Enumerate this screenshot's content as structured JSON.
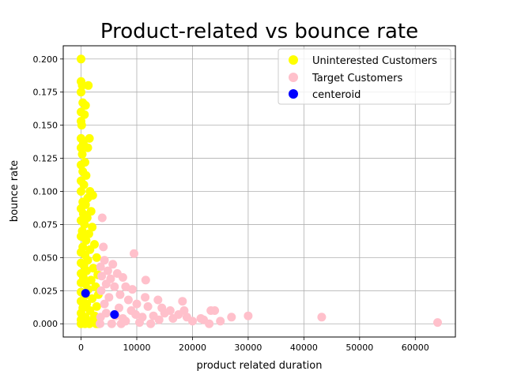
{
  "chart_data": {
    "type": "scatter",
    "title": "Product-related vs bounce rate",
    "xlabel": "product related duration",
    "ylabel": "bounce rate",
    "xlim": [
      -3200,
      67200
    ],
    "ylim": [
      -0.01,
      0.21
    ],
    "xticks": [
      0,
      10000,
      20000,
      30000,
      40000,
      50000,
      60000
    ],
    "xtick_labels": [
      "0",
      "10000",
      "20000",
      "30000",
      "40000",
      "50000",
      "60000"
    ],
    "yticks": [
      0.0,
      0.025,
      0.05,
      0.075,
      0.1,
      0.125,
      0.15,
      0.175,
      0.2
    ],
    "ytick_labels": [
      "0.000",
      "0.025",
      "0.050",
      "0.075",
      "0.100",
      "0.125",
      "0.150",
      "0.175",
      "0.200"
    ],
    "grid": true,
    "legend_position": "top-right",
    "series": [
      {
        "name": "Uninterested Customers",
        "color": "#ffff00",
        "points": [
          [
            0,
            0.2
          ],
          [
            0,
            0.183
          ],
          [
            200,
            0.18
          ],
          [
            1300,
            0.18
          ],
          [
            0,
            0.175
          ],
          [
            300,
            0.167
          ],
          [
            800,
            0.165
          ],
          [
            0,
            0.16
          ],
          [
            600,
            0.158
          ],
          [
            0,
            0.153
          ],
          [
            100,
            0.15
          ],
          [
            1500,
            0.14
          ],
          [
            0,
            0.14
          ],
          [
            400,
            0.136
          ],
          [
            1200,
            0.133
          ],
          [
            0,
            0.133
          ],
          [
            200,
            0.128
          ],
          [
            700,
            0.122
          ],
          [
            0,
            0.12
          ],
          [
            300,
            0.115
          ],
          [
            900,
            0.112
          ],
          [
            0,
            0.108
          ],
          [
            500,
            0.105
          ],
          [
            1600,
            0.1
          ],
          [
            0,
            0.1
          ],
          [
            2100,
            0.097
          ],
          [
            1200,
            0.095
          ],
          [
            300,
            0.092
          ],
          [
            800,
            0.09
          ],
          [
            0,
            0.087
          ],
          [
            1800,
            0.085
          ],
          [
            400,
            0.083
          ],
          [
            1100,
            0.08
          ],
          [
            0,
            0.078
          ],
          [
            600,
            0.075
          ],
          [
            2000,
            0.073
          ],
          [
            200,
            0.07
          ],
          [
            1400,
            0.068
          ],
          [
            0,
            0.066
          ],
          [
            900,
            0.063
          ],
          [
            2400,
            0.06
          ],
          [
            300,
            0.058
          ],
          [
            1600,
            0.056
          ],
          [
            0,
            0.054
          ],
          [
            700,
            0.052
          ],
          [
            2800,
            0.05
          ],
          [
            1200,
            0.048
          ],
          [
            0,
            0.046
          ],
          [
            500,
            0.044
          ],
          [
            2200,
            0.042
          ],
          [
            1000,
            0.04
          ],
          [
            0,
            0.038
          ],
          [
            3000,
            0.037
          ],
          [
            400,
            0.035
          ],
          [
            1800,
            0.033
          ],
          [
            0,
            0.031
          ],
          [
            800,
            0.03
          ],
          [
            2600,
            0.028
          ],
          [
            1300,
            0.026
          ],
          [
            0,
            0.024
          ],
          [
            3100,
            0.022
          ],
          [
            600,
            0.021
          ],
          [
            2000,
            0.019
          ],
          [
            0,
            0.017
          ],
          [
            1000,
            0.015
          ],
          [
            2800,
            0.013
          ],
          [
            300,
            0.012
          ],
          [
            1600,
            0.01
          ],
          [
            0,
            0.008
          ],
          [
            2400,
            0.006
          ],
          [
            800,
            0.005
          ],
          [
            0,
            0.003
          ],
          [
            1900,
            0.002
          ],
          [
            0,
            0.0
          ],
          [
            700,
            0.0
          ],
          [
            1500,
            0.0
          ],
          [
            2700,
            0.0
          ],
          [
            3100,
            0.0
          ]
        ]
      },
      {
        "name": "Target Customers",
        "color": "#ffc0cb",
        "points": [
          [
            3800,
            0.08
          ],
          [
            9500,
            0.053
          ],
          [
            4000,
            0.058
          ],
          [
            5700,
            0.045
          ],
          [
            4200,
            0.048
          ],
          [
            3500,
            0.043
          ],
          [
            6500,
            0.038
          ],
          [
            4800,
            0.04
          ],
          [
            3700,
            0.036
          ],
          [
            5300,
            0.034
          ],
          [
            7500,
            0.035
          ],
          [
            11600,
            0.033
          ],
          [
            8000,
            0.028
          ],
          [
            9200,
            0.026
          ],
          [
            4500,
            0.03
          ],
          [
            6000,
            0.028
          ],
          [
            3600,
            0.025
          ],
          [
            7000,
            0.022
          ],
          [
            11500,
            0.02
          ],
          [
            13800,
            0.018
          ],
          [
            18200,
            0.017
          ],
          [
            5000,
            0.02
          ],
          [
            8500,
            0.018
          ],
          [
            10000,
            0.015
          ],
          [
            12000,
            0.013
          ],
          [
            14500,
            0.012
          ],
          [
            16000,
            0.01
          ],
          [
            18500,
            0.01
          ],
          [
            23300,
            0.01
          ],
          [
            24000,
            0.01
          ],
          [
            9000,
            0.01
          ],
          [
            6800,
            0.012
          ],
          [
            4200,
            0.015
          ],
          [
            15000,
            0.008
          ],
          [
            17500,
            0.007
          ],
          [
            21500,
            0.004
          ],
          [
            22000,
            0.003
          ],
          [
            23000,
            0.0
          ],
          [
            25000,
            0.002
          ],
          [
            27000,
            0.005
          ],
          [
            30000,
            0.006
          ],
          [
            43200,
            0.005
          ],
          [
            64000,
            0.001
          ],
          [
            7500,
            0.004
          ],
          [
            11000,
            0.005
          ],
          [
            13000,
            0.006
          ],
          [
            19000,
            0.005
          ],
          [
            3500,
            0.005
          ],
          [
            5500,
            0.0
          ],
          [
            8000,
            0.002
          ],
          [
            10500,
            0.001
          ],
          [
            12500,
            0.0
          ],
          [
            14000,
            0.003
          ],
          [
            16500,
            0.004
          ],
          [
            4500,
            0.008
          ],
          [
            6200,
            0.006
          ],
          [
            9800,
            0.007
          ],
          [
            3400,
            0.0
          ],
          [
            20000,
            0.002
          ],
          [
            7200,
            0.0
          ]
        ]
      },
      {
        "name": "centeroid",
        "color": "#0000ff",
        "points": [
          [
            800,
            0.023
          ],
          [
            6000,
            0.007
          ]
        ]
      }
    ]
  }
}
